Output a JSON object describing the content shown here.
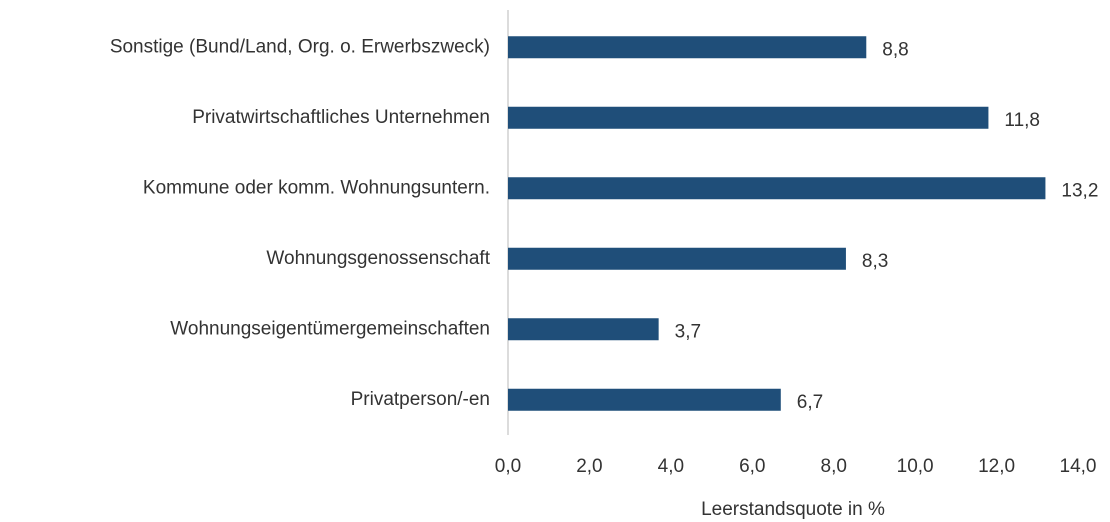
{
  "chart_data": {
    "type": "bar",
    "orientation": "horizontal",
    "categories": [
      "Sonstige (Bund/Land, Org. o. Erwerbszweck)",
      "Privatwirtschaftliches Unternehmen",
      "Kommune oder komm. Wohnungsuntern.",
      "Wohnungsgenossenschaft",
      "Wohnungseigentümergemeinschaften",
      "Privatperson/-en"
    ],
    "values": [
      8.8,
      11.8,
      13.2,
      8.3,
      3.7,
      6.7
    ],
    "value_labels": [
      "8,8",
      "11,8",
      "13,2",
      "8,3",
      "3,7",
      "6,7"
    ],
    "color": "#1f4e79",
    "xlabel": "Leerstandsquote in %",
    "xlim": [
      0,
      14
    ],
    "xticks": [
      {
        "value": 0,
        "label": "0,0"
      },
      {
        "value": 2,
        "label": "2,0"
      },
      {
        "value": 4,
        "label": "4,0"
      },
      {
        "value": 6,
        "label": "6,0"
      },
      {
        "value": 8,
        "label": "8,0"
      },
      {
        "value": 10,
        "label": "10,0"
      },
      {
        "value": 12,
        "label": "12,0"
      },
      {
        "value": 14,
        "label": "14,0"
      }
    ],
    "grid": false
  }
}
